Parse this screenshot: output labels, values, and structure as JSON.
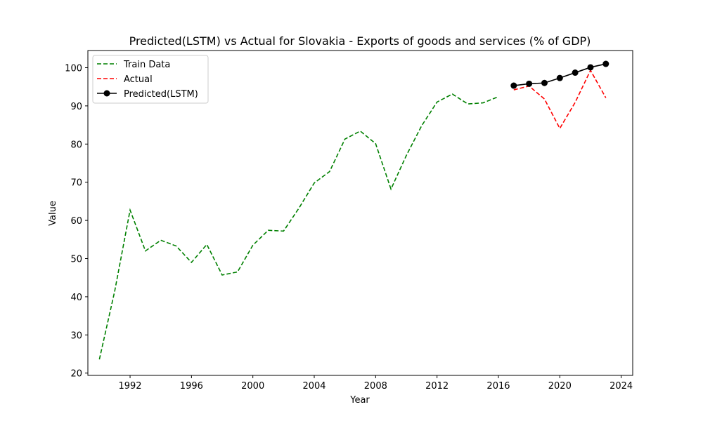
{
  "chart_data": {
    "type": "line",
    "title": "Predicted(LSTM) vs Actual for Slovakia - Exports of goods and services (% of GDP)",
    "xlabel": "Year",
    "ylabel": "Value",
    "xlim": [
      1989.25,
      2024.75
    ],
    "ylim": [
      19.4,
      104.5
    ],
    "xticks": [
      1992,
      1996,
      2000,
      2004,
      2008,
      2012,
      2016,
      2020,
      2024
    ],
    "yticks": [
      20,
      30,
      40,
      50,
      60,
      70,
      80,
      90,
      100
    ],
    "grid": false,
    "legend_position": "upper left",
    "series": [
      {
        "name": "Train Data",
        "color": "#008000",
        "style": "dashed",
        "marker": "none",
        "x": [
          1990,
          1991,
          1992,
          1993,
          1994,
          1995,
          1996,
          1997,
          1998,
          1999,
          2000,
          2001,
          2002,
          2003,
          2004,
          2005,
          2006,
          2007,
          2008,
          2009,
          2010,
          2011,
          2012,
          2013,
          2014,
          2015,
          2016
        ],
        "y": [
          23.6,
          41.5,
          62.7,
          52.0,
          54.8,
          53.3,
          49.0,
          53.7,
          45.7,
          46.5,
          53.5,
          57.4,
          57.2,
          63.2,
          69.8,
          72.8,
          81.3,
          83.4,
          80.1,
          68.2,
          77.0,
          84.8,
          91.0,
          93.1,
          90.5,
          90.8,
          92.4
        ]
      },
      {
        "name": "Actual",
        "color": "#ff0000",
        "style": "dashed",
        "marker": "none",
        "x": [
          2017,
          2018,
          2019,
          2020,
          2021,
          2022,
          2023
        ],
        "y": [
          94.2,
          95.2,
          91.8,
          84.1,
          90.9,
          99.3,
          92.1
        ]
      },
      {
        "name": "Predicted(LSTM)",
        "color": "#000000",
        "style": "solid",
        "marker": "circle",
        "x": [
          2017,
          2018,
          2019,
          2020,
          2021,
          2022,
          2023
        ],
        "y": [
          95.3,
          95.8,
          96.0,
          97.3,
          98.7,
          100.1,
          101.0
        ]
      }
    ]
  }
}
